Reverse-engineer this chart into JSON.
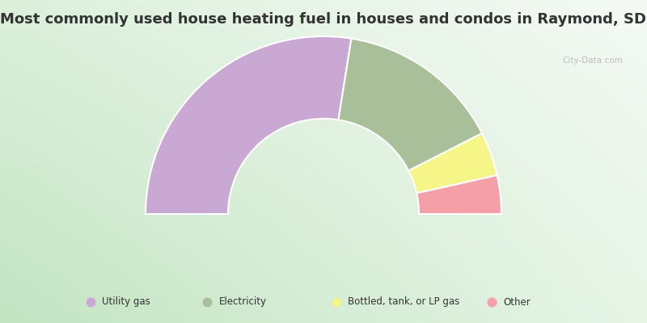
{
  "title": "Most commonly used house heating fuel in houses and condos in Raymond, SD",
  "segments": [
    {
      "label": "Utility gas",
      "value": 55.0,
      "color": "#c9a8d4"
    },
    {
      "label": "Electricity",
      "value": 30.0,
      "color": "#a8bf9a"
    },
    {
      "label": "Bottled, tank, or LP gas",
      "value": 8.0,
      "color": "#f5f588"
    },
    {
      "label": "Other",
      "value": 7.0,
      "color": "#f5a0a8"
    }
  ],
  "background_top_right": "#ffffff",
  "background_bottom_left": "#c8e8c8",
  "title_fontsize": 13,
  "watermark": "City-Data.com"
}
